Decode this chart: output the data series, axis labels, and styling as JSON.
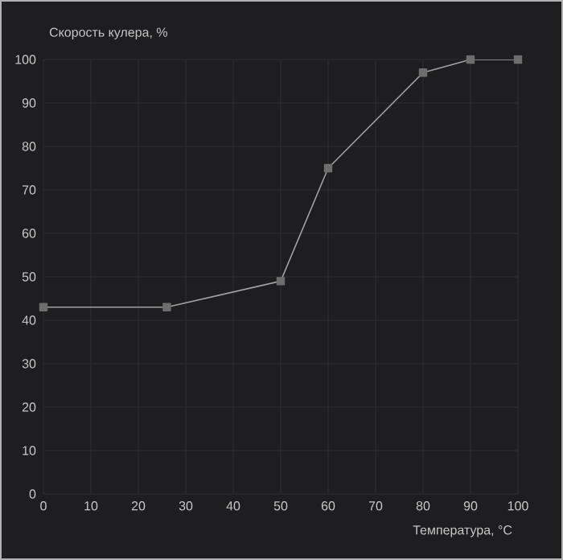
{
  "chart_data": {
    "type": "line",
    "xlabel": "Температура, °C",
    "ylabel": "Скорость кулера, %",
    "x": [
      0,
      26,
      50,
      60,
      80,
      90,
      100
    ],
    "series": [
      {
        "color": "#a0a0a0",
        "values": [
          43,
          43,
          49,
          75,
          97,
          100,
          100
        ]
      }
    ],
    "xlim": [
      0,
      100
    ],
    "ylim": [
      0,
      100
    ],
    "xticks": [
      0,
      10,
      20,
      30,
      40,
      50,
      60,
      70,
      80,
      90,
      100
    ],
    "yticks": [
      0,
      10,
      20,
      30,
      40,
      50,
      60,
      70,
      80,
      90,
      100
    ],
    "grid": true,
    "marker": "square",
    "line_style": "solid"
  }
}
